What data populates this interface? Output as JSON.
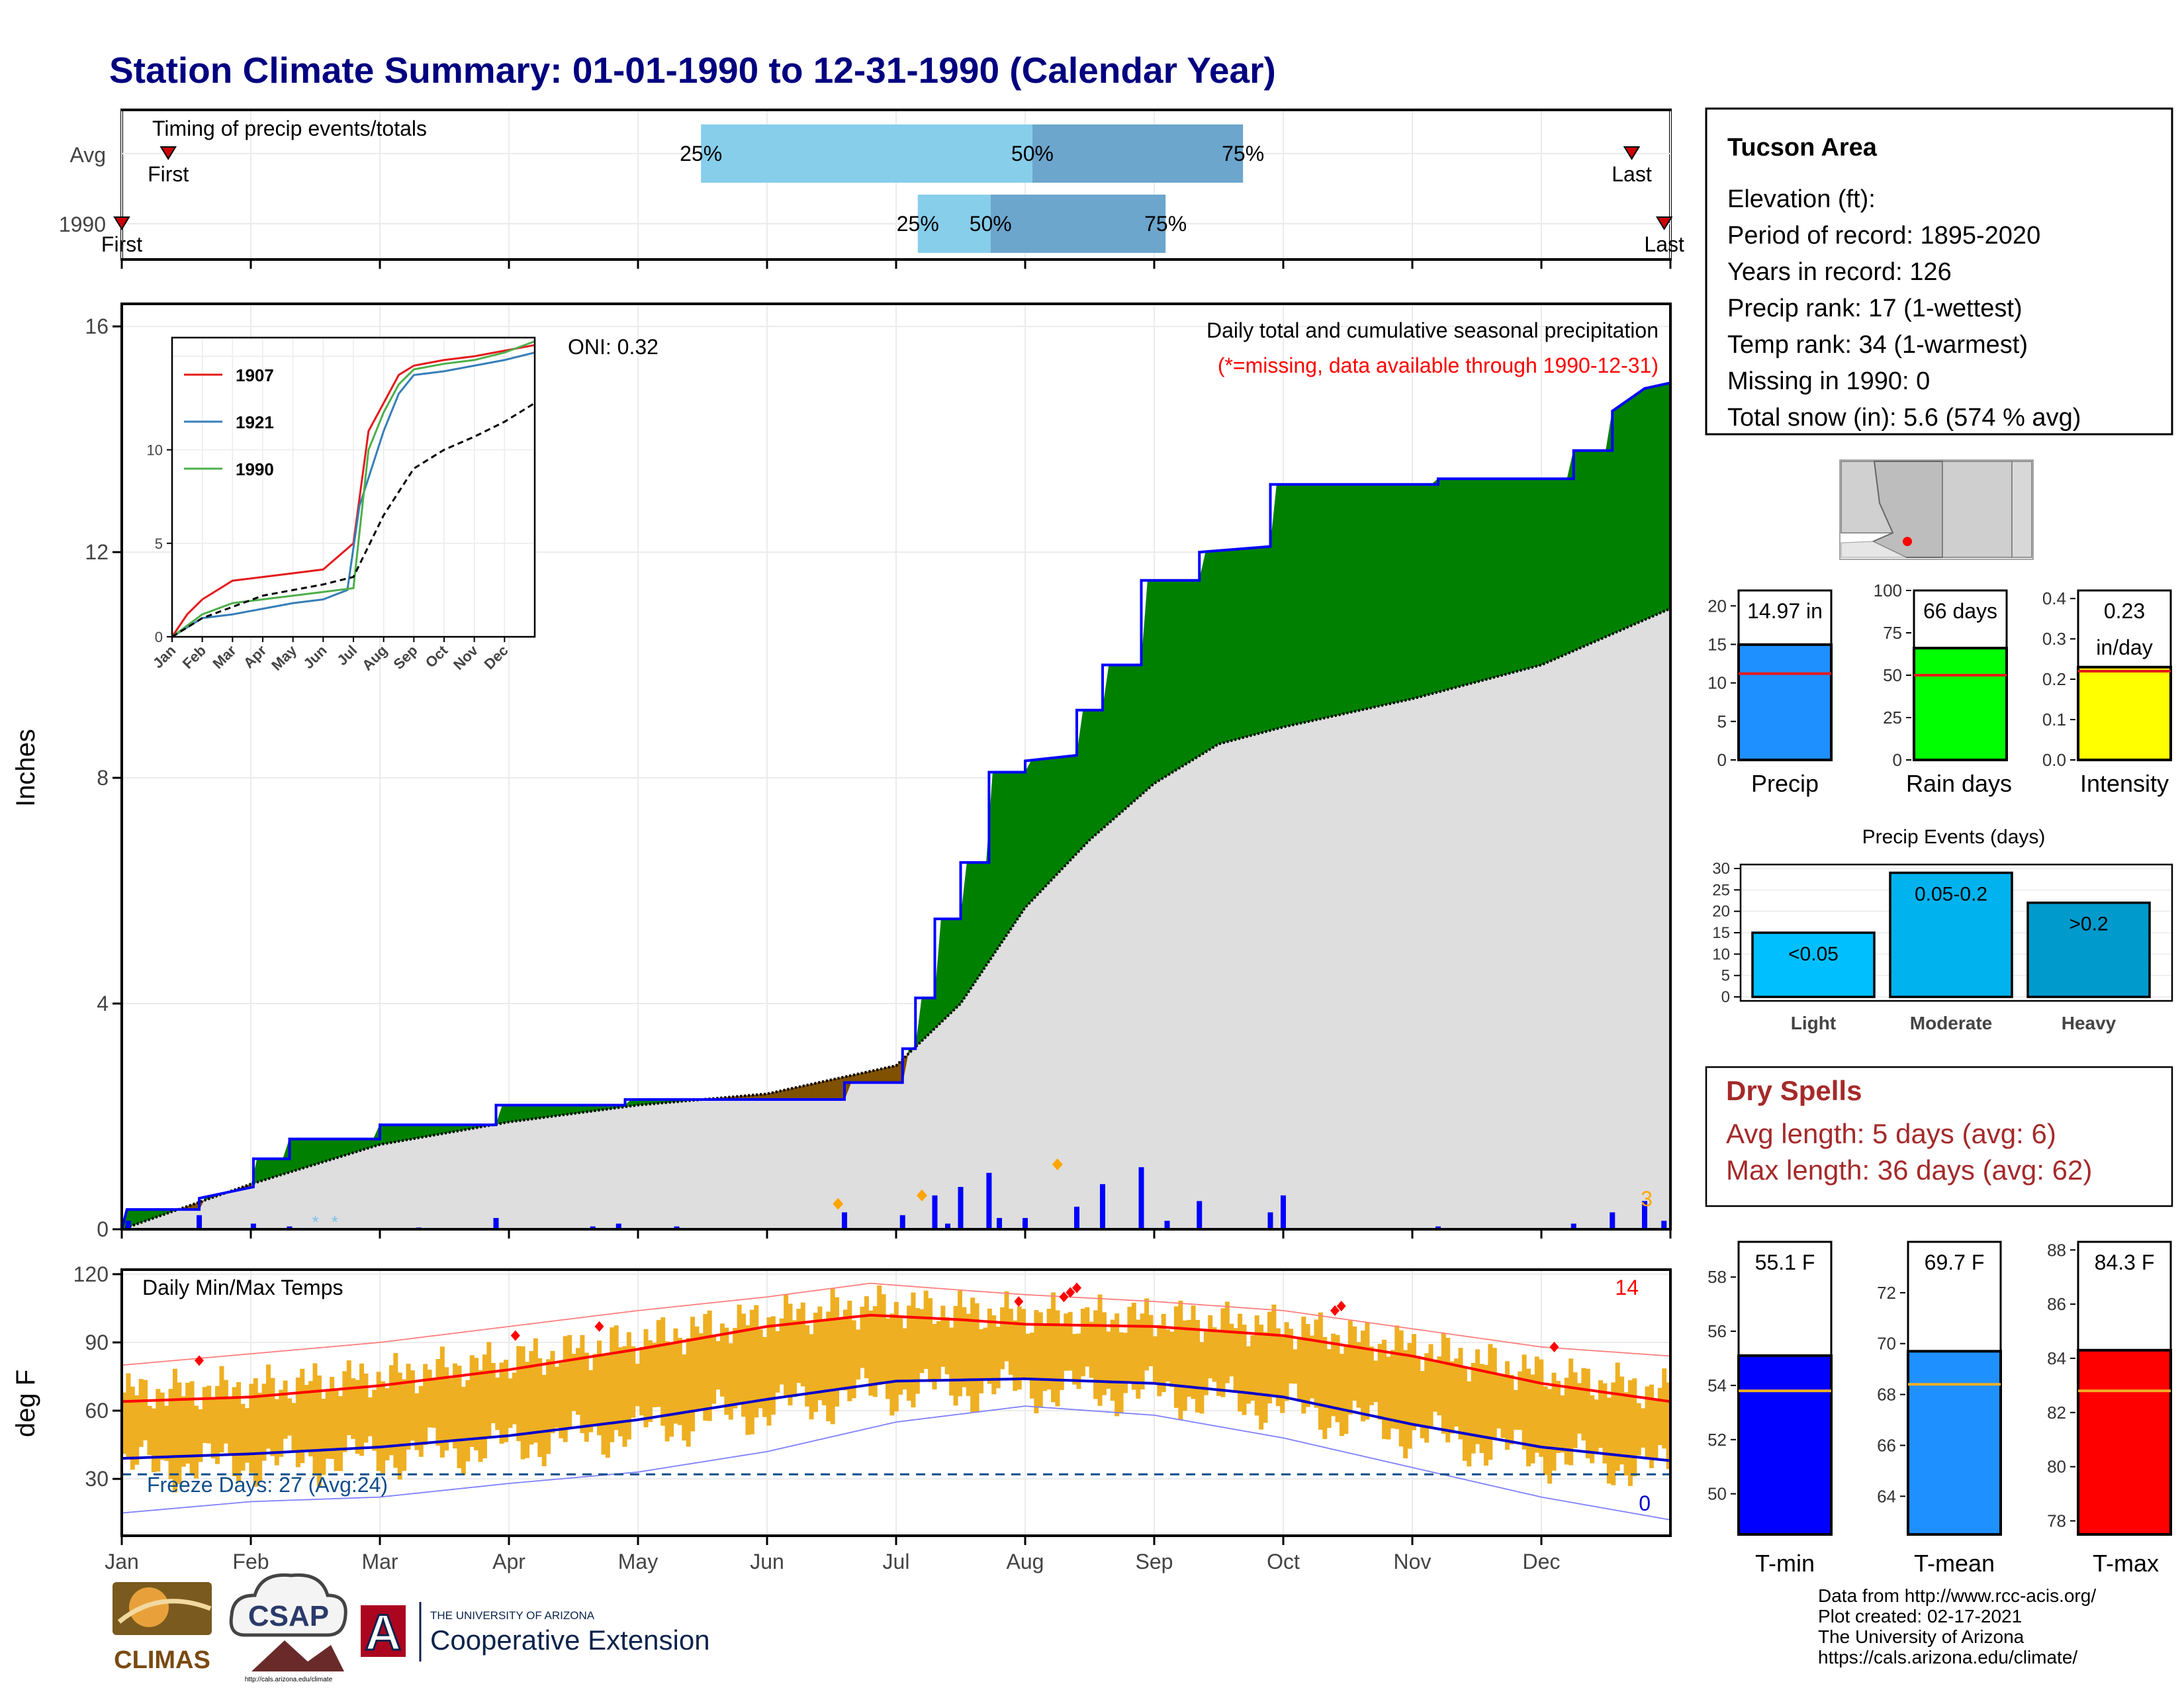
{
  "title": "Station Climate Summary: 01-01-1990 to 12-31-1990 (Calendar Year)",
  "colors": {
    "title": "#000080",
    "precip_wet": "#008000",
    "precip_dry": "#7f5100",
    "precip_line": "#0000ff",
    "normal_fill": "#dedede",
    "tmax": "#ff0000",
    "tmin": "#0000cc",
    "range_bar": "#eeaf22",
    "timing_light": "#87ceeb",
    "timing_dark": "#6ca6cd",
    "dry_spells": "#a52a2a",
    "rank_precip": "#1e90ff",
    "rank_raindays": "#00ff00",
    "rank_intensity": "#ffff00",
    "events_light": "#00bfff",
    "events_moderate": "#00b2ee",
    "events_heavy": "#009acd",
    "tmin_bar": "#0000ff",
    "tmean_bar": "#1e90ff",
    "tmax_bar": "#ff0000",
    "avg_line": "#eeaf22"
  },
  "months": [
    "Jan",
    "Feb",
    "Mar",
    "Apr",
    "May",
    "Jun",
    "Jul",
    "Aug",
    "Sep",
    "Oct",
    "Nov",
    "Dec"
  ],
  "timing": {
    "label": "Timing of precip events/totals",
    "rows": [
      {
        "name": "Avg",
        "first": 0.03,
        "p25": 0.374,
        "p50": 0.588,
        "p75": 0.724,
        "last": 0.975,
        "first_label": "First",
        "last_label": "Last",
        "p25_label": "25%",
        "p50_label": "50%",
        "p75_label": "75%"
      },
      {
        "name": "1990",
        "first": 0.0,
        "p25": 0.514,
        "p50": 0.561,
        "p75": 0.674,
        "last": 0.996,
        "first_label": "First",
        "last_label": "Last",
        "p25_label": "25%",
        "p50_label": "50%",
        "p75_label": "75%"
      }
    ]
  },
  "precip": {
    "ylabel": "Inches",
    "yticks": [
      "0",
      "4",
      "8",
      "12",
      "16"
    ],
    "oni_label": "ONI: 0.32",
    "subtitle": "Daily total and cumulative seasonal precipitation",
    "missing_note": "(*=missing, data available through 1990-12-31)",
    "count_label": "3",
    "inset": {
      "yticks": [
        "0",
        "5",
        "10"
      ],
      "legend": [
        "1907",
        "1921",
        "1990"
      ],
      "months": [
        "Jan",
        "Feb",
        "Mar",
        "Apr",
        "May",
        "Jun",
        "Jul",
        "Aug",
        "Sep",
        "Oct",
        "Nov",
        "Dec"
      ]
    }
  },
  "chart_data": [
    {
      "type": "area",
      "title": "Daily total and cumulative seasonal precipitation",
      "ylabel": "Inches",
      "ylim": [
        0,
        16.4
      ],
      "x_unit": "month (0 = Jan 1, 12 = Dec 31)",
      "observed_cumulative": [
        [
          0,
          0
        ],
        [
          0.04,
          0.35
        ],
        [
          0.6,
          0.35
        ],
        [
          0.6,
          0.55
        ],
        [
          1.02,
          0.75
        ],
        [
          1.02,
          1.25
        ],
        [
          1.3,
          1.25
        ],
        [
          1.3,
          1.6
        ],
        [
          2.0,
          1.6
        ],
        [
          2.0,
          1.85
        ],
        [
          2.9,
          1.85
        ],
        [
          2.9,
          2.2
        ],
        [
          3.9,
          2.2
        ],
        [
          3.9,
          2.3
        ],
        [
          5.6,
          2.3
        ],
        [
          5.6,
          2.6
        ],
        [
          6.05,
          2.6
        ],
        [
          6.05,
          3.2
        ],
        [
          6.15,
          3.2
        ],
        [
          6.15,
          4.1
        ],
        [
          6.3,
          4.1
        ],
        [
          6.3,
          5.5
        ],
        [
          6.5,
          5.5
        ],
        [
          6.5,
          6.5
        ],
        [
          6.72,
          6.5
        ],
        [
          6.72,
          8.1
        ],
        [
          7.0,
          8.1
        ],
        [
          7.0,
          8.3
        ],
        [
          7.4,
          8.4
        ],
        [
          7.4,
          9.2
        ],
        [
          7.6,
          9.2
        ],
        [
          7.6,
          10.0
        ],
        [
          7.9,
          10.0
        ],
        [
          7.9,
          11.5
        ],
        [
          8.35,
          11.5
        ],
        [
          8.35,
          12.0
        ],
        [
          8.9,
          12.1
        ],
        [
          8.9,
          13.2
        ],
        [
          10.2,
          13.2
        ],
        [
          10.2,
          13.3
        ],
        [
          11.25,
          13.3
        ],
        [
          11.25,
          13.8
        ],
        [
          11.55,
          13.8
        ],
        [
          11.55,
          14.5
        ],
        [
          11.8,
          14.9
        ],
        [
          12.0,
          15.0
        ]
      ],
      "normal_cumulative": [
        [
          0,
          0
        ],
        [
          1,
          0.8
        ],
        [
          2,
          1.5
        ],
        [
          3,
          1.9
        ],
        [
          4,
          2.2
        ],
        [
          5,
          2.4
        ],
        [
          6,
          2.9
        ],
        [
          6.5,
          4.0
        ],
        [
          7,
          5.7
        ],
        [
          7.5,
          6.9
        ],
        [
          8,
          7.9
        ],
        [
          8.5,
          8.6
        ],
        [
          9,
          8.9
        ],
        [
          10,
          9.4
        ],
        [
          11,
          10.0
        ],
        [
          12,
          11.0
        ]
      ],
      "daily_precip": [
        [
          0.05,
          0.15
        ],
        [
          0.6,
          0.25
        ],
        [
          1.02,
          0.1
        ],
        [
          1.3,
          0.05
        ],
        [
          2.2,
          0.02
        ],
        [
          2.3,
          0.03
        ],
        [
          2.9,
          0.2
        ],
        [
          3.65,
          0.05
        ],
        [
          3.85,
          0.1
        ],
        [
          4.3,
          0.05
        ],
        [
          5.6,
          0.3
        ],
        [
          6.05,
          0.25
        ],
        [
          6.3,
          0.6
        ],
        [
          6.4,
          0.1
        ],
        [
          6.5,
          0.75
        ],
        [
          6.72,
          1.0
        ],
        [
          6.8,
          0.2
        ],
        [
          7.0,
          0.2
        ],
        [
          7.4,
          0.4
        ],
        [
          7.6,
          0.8
        ],
        [
          7.9,
          1.1
        ],
        [
          8.1,
          0.15
        ],
        [
          8.35,
          0.5
        ],
        [
          8.9,
          0.3
        ],
        [
          9.0,
          0.6
        ],
        [
          10.2,
          0.05
        ],
        [
          11.25,
          0.1
        ],
        [
          11.55,
          0.3
        ],
        [
          11.8,
          0.5
        ],
        [
          11.95,
          0.15
        ]
      ],
      "inset_series": [
        {
          "name": "1907",
          "points": [
            [
              0,
              0
            ],
            [
              0.5,
              1.2
            ],
            [
              1,
              2
            ],
            [
              2,
              3
            ],
            [
              3,
              3.2
            ],
            [
              4,
              3.4
            ],
            [
              5,
              3.6
            ],
            [
              6,
              5
            ],
            [
              6.5,
              11
            ],
            [
              7,
              12.5
            ],
            [
              7.5,
              14
            ],
            [
              8,
              14.5
            ],
            [
              9,
              14.8
            ],
            [
              10,
              15
            ],
            [
              11,
              15.3
            ],
            [
              12,
              15.6
            ]
          ]
        },
        {
          "name": "1921",
          "points": [
            [
              0,
              0
            ],
            [
              1,
              1
            ],
            [
              2,
              1.2
            ],
            [
              3,
              1.5
            ],
            [
              4,
              1.8
            ],
            [
              5,
              2
            ],
            [
              5.8,
              2.5
            ],
            [
              6.2,
              7
            ],
            [
              7,
              11
            ],
            [
              7.5,
              13
            ],
            [
              8,
              14
            ],
            [
              9,
              14.2
            ],
            [
              10,
              14.5
            ],
            [
              11,
              14.8
            ],
            [
              12,
              15.2
            ]
          ]
        },
        {
          "name": "1990",
          "points": [
            [
              0,
              0
            ],
            [
              1,
              1.2
            ],
            [
              2,
              1.8
            ],
            [
              3,
              2
            ],
            [
              4,
              2.2
            ],
            [
              5,
              2.4
            ],
            [
              6,
              2.6
            ],
            [
              6.5,
              10
            ],
            [
              7,
              12
            ],
            [
              7.5,
              13.5
            ],
            [
              8,
              14.3
            ],
            [
              9,
              14.6
            ],
            [
              10,
              14.8
            ],
            [
              11,
              15.2
            ],
            [
              12,
              15.8
            ]
          ]
        },
        {
          "name": "Avg",
          "points": [
            [
              0,
              0
            ],
            [
              1,
              1
            ],
            [
              2,
              1.6
            ],
            [
              3,
              2.2
            ],
            [
              4,
              2.5
            ],
            [
              5,
              2.8
            ],
            [
              6,
              3.2
            ],
            [
              7,
              6.5
            ],
            [
              8,
              9
            ],
            [
              9,
              10
            ],
            [
              10,
              10.7
            ],
            [
              11,
              11.5
            ],
            [
              12,
              12.5
            ]
          ]
        }
      ]
    },
    {
      "type": "bar",
      "title": "Precip",
      "categories": [
        "Precip"
      ],
      "values": [
        14.97
      ],
      "value_label": "14.97 in",
      "average": 11.2,
      "ylim": [
        0,
        22
      ]
    },
    {
      "type": "bar",
      "title": "Rain days",
      "categories": [
        "Rain days"
      ],
      "values": [
        66
      ],
      "value_label": "66 days",
      "average": 50,
      "ylim": [
        0,
        100
      ]
    },
    {
      "type": "bar",
      "title": "Intensity",
      "categories": [
        "Intensity"
      ],
      "values": [
        0.23
      ],
      "value_label": "0.23 in/day",
      "average": 0.22,
      "ylim": [
        0,
        0.42
      ]
    },
    {
      "type": "bar",
      "title": "Precip Events (days)",
      "categories": [
        "Light",
        "Moderate",
        "Heavy"
      ],
      "values": [
        15,
        29,
        22
      ],
      "bar_labels": [
        "<0.05",
        "0.05-0.2",
        ">0.2"
      ],
      "ylim": [
        0,
        30
      ]
    },
    {
      "type": "line",
      "title": "Daily Min/Max Temps",
      "ylabel": "deg F",
      "ylim": [
        5,
        122
      ],
      "freeze_line": 32,
      "series": [
        {
          "name": "tmax_normal",
          "points": [
            [
              0,
              64
            ],
            [
              1,
              66
            ],
            [
              2,
              71
            ],
            [
              3,
              78
            ],
            [
              4,
              87
            ],
            [
              5,
              97
            ],
            [
              5.8,
              102
            ],
            [
              6.5,
              100
            ],
            [
              7,
              98
            ],
            [
              8,
              97
            ],
            [
              9,
              93
            ],
            [
              10,
              84
            ],
            [
              11,
              72
            ],
            [
              12,
              64
            ]
          ]
        },
        {
          "name": "tmin_normal",
          "points": [
            [
              0,
              39
            ],
            [
              1,
              41
            ],
            [
              2,
              44
            ],
            [
              3,
              49
            ],
            [
              4,
              56
            ],
            [
              5,
              65
            ],
            [
              6,
              73
            ],
            [
              7,
              74
            ],
            [
              8,
              72
            ],
            [
              8.7,
              68
            ],
            [
              9,
              66
            ],
            [
              10,
              54
            ],
            [
              11,
              44
            ],
            [
              12,
              38
            ]
          ]
        },
        {
          "name": "record_high",
          "points": [
            [
              0,
              80
            ],
            [
              1,
              85
            ],
            [
              2,
              90
            ],
            [
              3,
              97
            ],
            [
              4,
              104
            ],
            [
              5,
              110
            ],
            [
              5.8,
              116
            ],
            [
              6.5,
              113
            ],
            [
              7,
              111
            ],
            [
              8,
              108
            ],
            [
              9,
              104
            ],
            [
              10,
              96
            ],
            [
              11,
              88
            ],
            [
              12,
              84
            ]
          ]
        },
        {
          "name": "record_low",
          "points": [
            [
              0,
              15
            ],
            [
              1,
              20
            ],
            [
              2,
              22
            ],
            [
              3,
              28
            ],
            [
              4,
              33
            ],
            [
              5,
              42
            ],
            [
              6,
              55
            ],
            [
              7,
              62
            ],
            [
              8,
              58
            ],
            [
              9,
              48
            ],
            [
              10,
              35
            ],
            [
              11,
              22
            ],
            [
              12,
              12
            ]
          ]
        }
      ]
    },
    {
      "type": "bar",
      "title": "T-min",
      "categories": [
        "T-min"
      ],
      "values": [
        55.1
      ],
      "value_label": "55.1 F",
      "average": 53.8,
      "ylim": [
        48.5,
        59.3
      ]
    },
    {
      "type": "bar",
      "title": "T-mean",
      "categories": [
        "T-mean"
      ],
      "values": [
        69.7
      ],
      "value_label": "69.7 F",
      "average": 68.4,
      "ylim": [
        62.5,
        74
      ]
    },
    {
      "type": "bar",
      "title": "T-max",
      "categories": [
        "T-max"
      ],
      "values": [
        84.3
      ],
      "value_label": "84.3 F",
      "average": 82.8,
      "ylim": [
        77.5,
        88.3
      ]
    }
  ],
  "temps": {
    "title": "Daily Min/Max Temps",
    "ylabel": "deg F",
    "yticks": [
      "30",
      "60",
      "90",
      "120"
    ],
    "freeze_label": "Freeze Days: 27 (Avg:24)",
    "record_high_count": "14",
    "record_low_count": "0"
  },
  "info": {
    "station": "Tucson Area",
    "lines": [
      "Elevation (ft):",
      "Period of record: 1895-2020",
      "Years in record: 126",
      "Precip rank: 17 (1-wettest)",
      "Temp rank: 34 (1-warmest)",
      "Missing in 1990: 0",
      "Total snow (in): 5.6 (574 % avg)"
    ]
  },
  "ranks": {
    "precip": {
      "label": "Precip",
      "value_label": "14.97 in",
      "yticks": [
        "0",
        "5",
        "10",
        "15",
        "20"
      ]
    },
    "raindays": {
      "label": "Rain days",
      "value_label": "66 days",
      "yticks": [
        "0",
        "25",
        "50",
        "75",
        "100"
      ]
    },
    "intensity": {
      "label": "Intensity",
      "value_label_1": "0.23",
      "value_label_2": "in/day",
      "yticks": [
        "0.0",
        "0.1",
        "0.2",
        "0.3",
        "0.4"
      ]
    }
  },
  "events": {
    "title": "Precip Events (days)",
    "yticks": [
      "0",
      "5",
      "10",
      "15",
      "20",
      "25",
      "30"
    ],
    "categories": [
      "Light",
      "Moderate",
      "Heavy"
    ],
    "bar_labels": [
      "<0.05",
      "0.05-0.2",
      ">0.2"
    ]
  },
  "dry_spells": {
    "title": "Dry Spells",
    "avg": "Avg length: 5 days (avg: 6)",
    "max": "Max length: 36 days (avg: 62)"
  },
  "temp_bars": {
    "tmin": {
      "label": "T-min",
      "value_label": "55.1 F",
      "yticks": [
        "50",
        "52",
        "54",
        "56",
        "58"
      ]
    },
    "tmean": {
      "label": "T-mean",
      "value_label": "69.7 F",
      "yticks": [
        "64",
        "66",
        "68",
        "70",
        "72"
      ]
    },
    "tmax": {
      "label": "T-max",
      "value_label": "84.3 F",
      "yticks": [
        "78",
        "80",
        "82",
        "84",
        "86",
        "88"
      ]
    }
  },
  "footer": {
    "credits": [
      "Data from http://www.rcc-acis.org/",
      "Plot created: 02-17-2021",
      "The University of Arizona",
      "https://cals.arizona.edu/climate/"
    ],
    "climas": "CLIMAS",
    "csap": "CSAP",
    "csap_url": "http://cals.arizona.edu/climate",
    "ua_small": "THE UNIVERSITY OF ARIZONA",
    "ua_big": "Cooperative Extension",
    "ua_letter": "A"
  }
}
